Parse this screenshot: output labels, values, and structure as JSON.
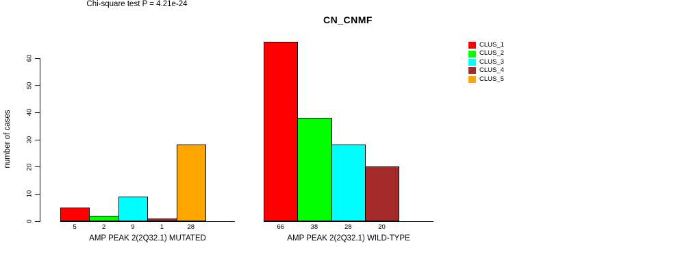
{
  "chart_data": {
    "type": "bar",
    "title": "CN_CNMF",
    "ylabel": "number of cases",
    "xlabel": "",
    "ylim": [
      0,
      60
    ],
    "yticks": [
      "0",
      "10",
      "20",
      "30",
      "40",
      "50",
      "60"
    ],
    "grid": false,
    "legend_position": "right",
    "legend": [
      {
        "label": "CLUS_1",
        "color": "#FF0000"
      },
      {
        "label": "CLUS_2",
        "color": "#00FF00"
      },
      {
        "label": "CLUS_3",
        "color": "#00FFFF"
      },
      {
        "label": "CLUS_4",
        "color": "#A52A2A"
      },
      {
        "label": "CLUS_5",
        "color": "#FFA500"
      }
    ],
    "groups": [
      {
        "label": "AMP PEAK 2(2Q32.1) MUTATED",
        "series": [
          "CLUS_1",
          "CLUS_2",
          "CLUS_3",
          "CLUS_4",
          "CLUS_5"
        ],
        "values": [
          5,
          2,
          9,
          1,
          28
        ],
        "bar_labels": [
          "5",
          "2",
          "9",
          "1",
          "28"
        ]
      },
      {
        "label": "AMP PEAK 2(2Q32.1) WILD-TYPE",
        "series": [
          "CLUS_1",
          "CLUS_2",
          "CLUS_3",
          "CLUS_4",
          "CLUS_5"
        ],
        "values": [
          66,
          38,
          28,
          20,
          0
        ],
        "bar_labels": [
          "66",
          "38",
          "28",
          "20",
          ""
        ]
      }
    ],
    "annotation": "Chi-square test P = 4.21e-24"
  }
}
